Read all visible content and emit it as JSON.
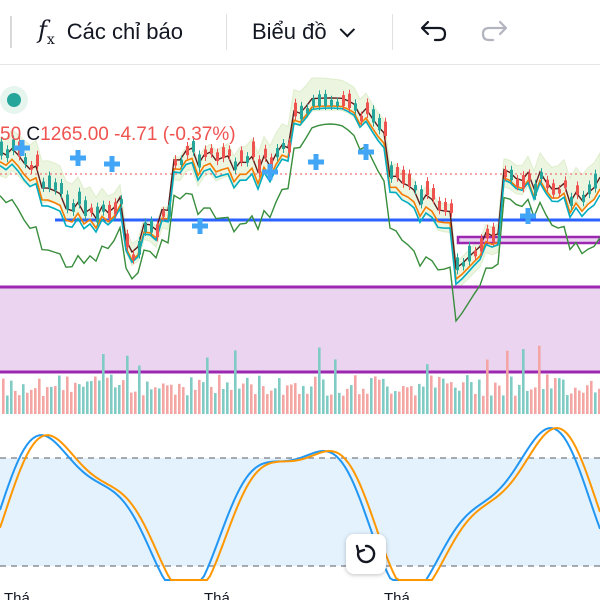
{
  "toolbar": {
    "indicators_label": "Các chỉ báo",
    "chart_type_label": "Biểu đồ",
    "icons": [
      "fx-icon",
      "chevron-down-icon",
      "undo-icon",
      "redo-icon"
    ]
  },
  "legend": {
    "price_fragment": "50",
    "close_label": "C",
    "close_value": "1265.00",
    "change": "-4.71",
    "change_percent": "(-0.37%)",
    "change_color": "#ef5350"
  },
  "time_axis": {
    "labels": [
      "Thá",
      "Thá",
      "Thá"
    ]
  },
  "colors": {
    "up": "#26a69a",
    "down": "#ef5350",
    "support_line": "#2962ff",
    "zone_border": "#9c27b0",
    "zone_fill": "#e9d2ef",
    "osc_k": "#2196f3",
    "osc_d": "#ff9800",
    "osc_band": "#e3f2fd"
  }
}
